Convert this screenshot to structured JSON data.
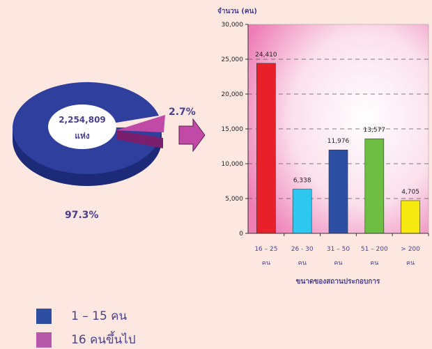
{
  "pie": {
    "center_value": "2,254,809",
    "center_unit": "แห่ง",
    "slices": [
      {
        "label": "97.3%",
        "value": 97.3,
        "color": "#2e3f9e"
      },
      {
        "label": "2.7%",
        "value": 2.7,
        "color": "#c14aa6"
      }
    ]
  },
  "legend": [
    {
      "label": "1 – 15 คน",
      "color": "#2e4ea2"
    },
    {
      "label": "16 คนขึ้นไป",
      "color": "#b659a8"
    }
  ],
  "chart_data": {
    "type": "bar",
    "ylabel": "จำนวน (คน)",
    "xlabel": "ขนาดของสถานประกอบการ",
    "ylim": [
      0,
      30000
    ],
    "yticks": [
      "0",
      "5,000",
      "10,000",
      "15,000",
      "20,000",
      "25,000",
      "30,000"
    ],
    "grid": "dashed",
    "categories": [
      {
        "line1": "16 – 25",
        "line2": "คน"
      },
      {
        "line1": "26 - 30",
        "line2": "คน"
      },
      {
        "line1": "31 – 50",
        "line2": "คน"
      },
      {
        "line1": "51 – 200",
        "line2": "คน"
      },
      {
        "line1": "> 200",
        "line2": "คน"
      }
    ],
    "values": [
      24410,
      6338,
      11976,
      13577,
      4705
    ],
    "value_labels": [
      "24,410",
      "6,338",
      "11,976",
      "13,577",
      "4,705"
    ],
    "colors": [
      "#e8202a",
      "#2ec7f0",
      "#2c4ea3",
      "#6fbe44",
      "#f5e90f"
    ]
  }
}
